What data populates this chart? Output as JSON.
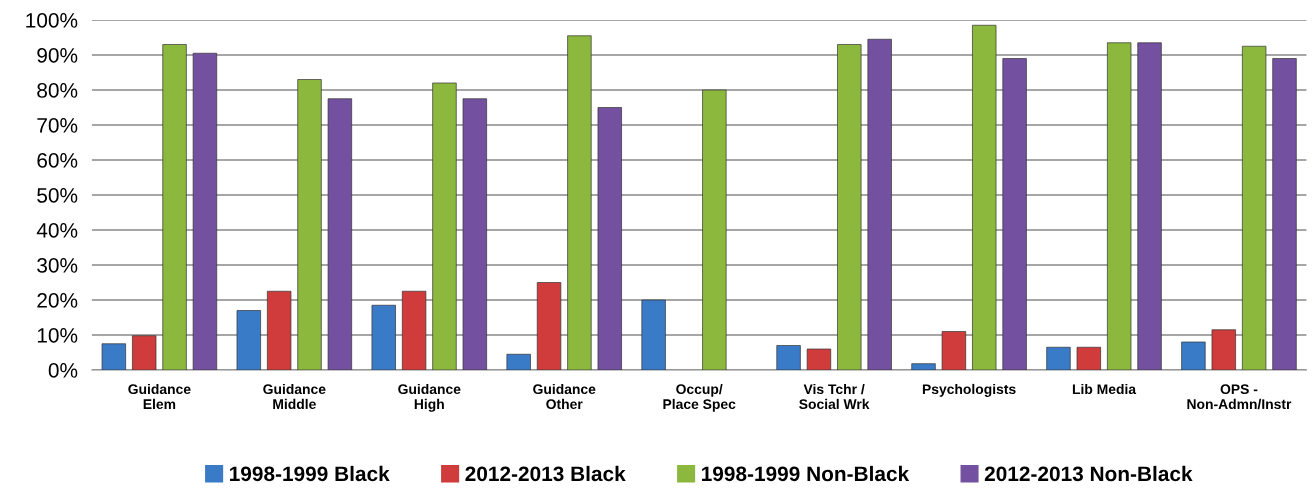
{
  "chart_data": {
    "type": "bar",
    "categories": [
      "Guidance\nElem",
      "Guidance\nMiddle",
      "Guidance\nHigh",
      "Guidance\nOther",
      "Occup/\nPlace Spec",
      "Vis Tchr /\nSocial Wrk",
      "Psychologists",
      "Lib Media",
      "OPS -\nNon-Admn/Instr"
    ],
    "series": [
      {
        "name": "1998-1999 Black",
        "color": "#3a7bc8",
        "values": [
          7.5,
          17,
          18.5,
          4.5,
          20,
          7,
          1.8,
          6.5,
          8
        ]
      },
      {
        "name": "2012-2013 Black",
        "color": "#d03c3c",
        "values": [
          9.8,
          22.5,
          22.5,
          25,
          null,
          6,
          11,
          6.5,
          11.5
        ]
      },
      {
        "name": "1998-1999 Non-Black",
        "color": "#8cb83e",
        "values": [
          93,
          83,
          82,
          95.5,
          80,
          93,
          98.5,
          93.5,
          92.5
        ]
      },
      {
        "name": "2012-2013 Non-Black",
        "color": "#7450a0",
        "values": [
          90.5,
          77.5,
          77.5,
          75,
          null,
          94.5,
          89,
          93.5,
          89
        ]
      }
    ],
    "ylim": [
      0,
      100
    ],
    "yticks": [
      {
        "value": 0,
        "label": "0%"
      },
      {
        "value": 10,
        "label": "10%"
      },
      {
        "value": 20,
        "label": "20%"
      },
      {
        "value": 30,
        "label": "30%"
      },
      {
        "value": 40,
        "label": "40%"
      },
      {
        "value": 50,
        "label": "50%"
      },
      {
        "value": 60,
        "label": "60%"
      },
      {
        "value": 70,
        "label": "70%"
      },
      {
        "value": 80,
        "label": "80%"
      },
      {
        "value": 90,
        "label": "90%"
      },
      {
        "value": 100,
        "label": "100%"
      }
    ],
    "grid": "y",
    "legend": "bottom"
  }
}
